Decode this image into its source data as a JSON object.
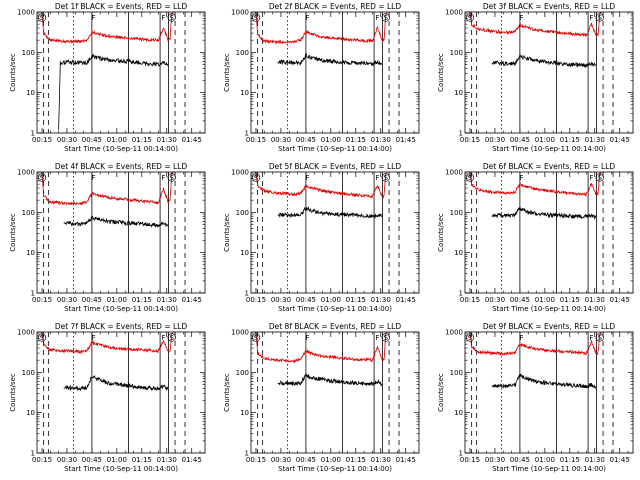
{
  "chart_data": [
    {
      "type": "line",
      "title": "Det 1f BLACK = Events, RED = LLD",
      "xlabel": "Start Time (10-Sep-11 00:14:00)",
      "ylabel": "Counts/sec",
      "yscale": "log",
      "ylim": [
        1,
        1000
      ],
      "xlim": [
        "00:15",
        "01:50"
      ],
      "x_ticks": [
        "00:15",
        "00:30",
        "00:45",
        "01:00",
        "01:15",
        "01:30",
        "01:45"
      ],
      "y_ticks": [
        "1",
        "10",
        "100",
        "1000"
      ],
      "flag_labels": [
        "F",
        "F",
        "S"
      ],
      "series": [
        {
          "name": "LLD",
          "color": "#e00000",
          "x_min": [
            15,
            16,
            20,
            28,
            38,
            42,
            45,
            47,
            55,
            65,
            75,
            85,
            88,
            91,
            92,
            93,
            94
          ],
          "values": [
            1000,
            300,
            200,
            190,
            185,
            200,
            320,
            300,
            250,
            230,
            210,
            200,
            400,
            200,
            220,
            900,
            1000
          ]
        },
        {
          "name": "Events",
          "color": "#000000",
          "x_min": [
            25,
            26,
            30,
            38,
            42,
            45,
            47,
            55,
            65,
            75,
            85,
            88,
            90,
            91
          ],
          "values": [
            1.2,
            55,
            58,
            55,
            55,
            80,
            75,
            65,
            60,
            55,
            50,
            55,
            50,
            50
          ]
        }
      ]
    },
    {
      "type": "line",
      "title": "Det 2f BLACK = Events, RED = LLD",
      "xlabel": "Start Time (10-Sep-11 00:14:00)",
      "ylabel": "Counts/sec",
      "yscale": "log",
      "ylim": [
        1,
        1000
      ],
      "xlim": [
        "00:15",
        "01:50"
      ],
      "x_ticks": [
        "00:15",
        "00:30",
        "00:45",
        "01:00",
        "01:15",
        "01:30",
        "01:45"
      ],
      "y_ticks": [
        "1",
        "10",
        "100",
        "1000"
      ],
      "flag_labels": [
        "F",
        "F",
        "S"
      ],
      "series": [
        {
          "name": "LLD",
          "color": "#e00000",
          "x_min": [
            15,
            16,
            20,
            28,
            38,
            42,
            45,
            47,
            55,
            65,
            75,
            85,
            88,
            91,
            92,
            93,
            94
          ],
          "values": [
            1000,
            280,
            190,
            180,
            180,
            200,
            330,
            300,
            240,
            220,
            200,
            190,
            420,
            190,
            210,
            900,
            1000
          ]
        },
        {
          "name": "Events",
          "color": "#000000",
          "x_min": [
            28,
            30,
            38,
            42,
            45,
            47,
            55,
            65,
            75,
            85,
            88,
            91
          ],
          "values": [
            55,
            58,
            55,
            55,
            85,
            75,
            62,
            58,
            55,
            52,
            58,
            50
          ]
        }
      ]
    },
    {
      "type": "line",
      "title": "Det 3f BLACK = Events, RED = LLD",
      "xlabel": "Start Time (10-Sep-11 00:14:00)",
      "ylabel": "Counts/sec",
      "yscale": "log",
      "ylim": [
        1,
        1000
      ],
      "xlim": [
        "00:15",
        "01:50"
      ],
      "x_ticks": [
        "00:15",
        "00:30",
        "00:45",
        "01:00",
        "01:15",
        "01:30",
        "01:45"
      ],
      "y_ticks": [
        "1",
        "10",
        "100",
        "1000"
      ],
      "flag_labels": [
        "F",
        "F",
        "S"
      ],
      "series": [
        {
          "name": "LLD",
          "color": "#e00000",
          "x_min": [
            15,
            16,
            20,
            28,
            38,
            42,
            45,
            47,
            55,
            65,
            75,
            85,
            88,
            91,
            92,
            93,
            94
          ],
          "values": [
            1000,
            500,
            380,
            330,
            310,
            330,
            480,
            440,
            360,
            320,
            290,
            270,
            500,
            260,
            280,
            900,
            1000
          ]
        },
        {
          "name": "Events",
          "color": "#000000",
          "x_min": [
            28,
            30,
            38,
            42,
            45,
            47,
            55,
            65,
            75,
            85,
            88,
            91
          ],
          "values": [
            52,
            55,
            52,
            52,
            85,
            75,
            62,
            55,
            50,
            48,
            52,
            47
          ]
        }
      ]
    },
    {
      "type": "line",
      "title": "Det 4f BLACK = Events, RED = LLD",
      "xlabel": "Start Time (10-Sep-11 00:14:00)",
      "ylabel": "Counts/sec",
      "yscale": "log",
      "ylim": [
        1,
        1000
      ],
      "xlim": [
        "00:15",
        "01:50"
      ],
      "x_ticks": [
        "00:15",
        "00:30",
        "00:45",
        "01:00",
        "01:15",
        "01:30",
        "01:45"
      ],
      "y_ticks": [
        "1",
        "10",
        "100",
        "1000"
      ],
      "flag_labels": [
        "F",
        "F",
        "S"
      ],
      "series": [
        {
          "name": "LLD",
          "color": "#e00000",
          "x_min": [
            15,
            16,
            20,
            28,
            38,
            42,
            45,
            47,
            55,
            65,
            75,
            85,
            88,
            91,
            92,
            93,
            94
          ],
          "values": [
            1000,
            260,
            180,
            170,
            165,
            180,
            300,
            280,
            230,
            210,
            190,
            175,
            380,
            175,
            190,
            900,
            1000
          ]
        },
        {
          "name": "Events",
          "color": "#000000",
          "x_min": [
            28,
            30,
            38,
            42,
            45,
            47,
            55,
            65,
            75,
            85,
            88,
            91
          ],
          "values": [
            55,
            55,
            50,
            52,
            75,
            70,
            60,
            55,
            52,
            48,
            52,
            45
          ]
        }
      ]
    },
    {
      "type": "line",
      "title": "Det 5f BLACK = Events, RED = LLD",
      "xlabel": "Start Time (10-Sep-11 00:14:00)",
      "ylabel": "Counts/sec",
      "yscale": "log",
      "ylim": [
        1,
        1000
      ],
      "xlim": [
        "00:15",
        "01:50"
      ],
      "x_ticks": [
        "00:15",
        "00:30",
        "00:45",
        "01:00",
        "01:15",
        "01:30",
        "01:45"
      ],
      "y_ticks": [
        "1",
        "10",
        "100",
        "1000"
      ],
      "flag_labels": [
        "F",
        "F",
        "S"
      ],
      "series": [
        {
          "name": "LLD",
          "color": "#e00000",
          "x_min": [
            15,
            16,
            20,
            28,
            38,
            42,
            45,
            47,
            55,
            65,
            75,
            85,
            88,
            91,
            92,
            93,
            94
          ],
          "values": [
            1000,
            450,
            340,
            300,
            280,
            300,
            450,
            420,
            340,
            300,
            270,
            250,
            480,
            240,
            260,
            900,
            1000
          ]
        },
        {
          "name": "Events",
          "color": "#000000",
          "x_min": [
            28,
            30,
            38,
            42,
            45,
            47,
            55,
            65,
            75,
            85,
            88,
            91
          ],
          "values": [
            85,
            88,
            85,
            88,
            125,
            115,
            95,
            88,
            85,
            80,
            85,
            78
          ]
        }
      ]
    },
    {
      "type": "line",
      "title": "Det 6f BLACK = Events, RED = LLD",
      "xlabel": "Start Time (10-Sep-11 00:14:00)",
      "ylabel": "Counts/sec",
      "yscale": "log",
      "ylim": [
        1,
        1000
      ],
      "xlim": [
        "00:15",
        "01:50"
      ],
      "x_ticks": [
        "00:15",
        "00:30",
        "00:45",
        "01:00",
        "01:15",
        "01:30",
        "01:45"
      ],
      "y_ticks": [
        "1",
        "10",
        "100",
        "1000"
      ],
      "flag_labels": [
        "F",
        "F",
        "S"
      ],
      "series": [
        {
          "name": "LLD",
          "color": "#e00000",
          "x_min": [
            15,
            16,
            20,
            28,
            38,
            42,
            45,
            47,
            55,
            65,
            75,
            85,
            88,
            91,
            92,
            93,
            94
          ],
          "values": [
            1000,
            480,
            360,
            320,
            300,
            320,
            500,
            460,
            370,
            330,
            300,
            280,
            520,
            270,
            290,
            900,
            1000
          ]
        },
        {
          "name": "Events",
          "color": "#000000",
          "x_min": [
            28,
            30,
            38,
            42,
            45,
            47,
            55,
            65,
            75,
            85,
            88,
            91
          ],
          "values": [
            80,
            85,
            82,
            85,
            125,
            110,
            92,
            85,
            80,
            78,
            82,
            75
          ]
        }
      ]
    },
    {
      "type": "line",
      "title": "Det 7f BLACK = Events, RED = LLD",
      "xlabel": "Start Time (10-Sep-11 00:14:00)",
      "ylabel": "Counts/sec",
      "yscale": "log",
      "ylim": [
        1,
        1000
      ],
      "xlim": [
        "00:15",
        "01:50"
      ],
      "x_ticks": [
        "00:15",
        "00:30",
        "00:45",
        "01:00",
        "01:15",
        "01:30",
        "01:45"
      ],
      "y_ticks": [
        "1",
        "10",
        "100",
        "1000"
      ],
      "flag_labels": [
        "F",
        "F",
        "S"
      ],
      "series": [
        {
          "name": "LLD",
          "color": "#e00000",
          "x_min": [
            15,
            16,
            20,
            28,
            38,
            42,
            45,
            47,
            55,
            65,
            75,
            85,
            88,
            91,
            92,
            93,
            94
          ],
          "values": [
            1000,
            500,
            360,
            340,
            330,
            340,
            560,
            520,
            420,
            380,
            360,
            340,
            600,
            330,
            350,
            900,
            1000
          ]
        },
        {
          "name": "Events",
          "color": "#000000",
          "x_min": [
            28,
            30,
            38,
            42,
            45,
            47,
            55,
            65,
            75,
            85,
            88,
            91
          ],
          "values": [
            40,
            42,
            40,
            42,
            80,
            72,
            55,
            48,
            42,
            40,
            45,
            38
          ]
        }
      ]
    },
    {
      "type": "line",
      "title": "Det 8f BLACK = Events, RED = LLD",
      "xlabel": "Start Time (10-Sep-11 00:14:00)",
      "ylabel": "Counts/sec",
      "yscale": "log",
      "ylim": [
        1,
        1000
      ],
      "xlim": [
        "00:15",
        "01:50"
      ],
      "x_ticks": [
        "00:15",
        "00:30",
        "00:45",
        "01:00",
        "01:15",
        "01:30",
        "01:45"
      ],
      "y_ticks": [
        "1",
        "10",
        "100",
        "1000"
      ],
      "flag_labels": [
        "F",
        "F",
        "S"
      ],
      "series": [
        {
          "name": "LLD",
          "color": "#e00000",
          "x_min": [
            15,
            16,
            20,
            28,
            38,
            42,
            45,
            47,
            55,
            65,
            75,
            85,
            88,
            91,
            92,
            93,
            94
          ],
          "values": [
            1000,
            300,
            220,
            200,
            190,
            210,
            340,
            310,
            250,
            230,
            210,
            200,
            420,
            200,
            215,
            900,
            1000
          ]
        },
        {
          "name": "Events",
          "color": "#000000",
          "x_min": [
            28,
            30,
            38,
            42,
            45,
            47,
            55,
            65,
            75,
            85,
            88,
            91
          ],
          "values": [
            52,
            55,
            52,
            55,
            85,
            78,
            65,
            58,
            55,
            52,
            58,
            50
          ]
        }
      ]
    },
    {
      "type": "line",
      "title": "Det 9f BLACK = Events, RED = LLD",
      "xlabel": "Start Time (10-Sep-11 00:14:00)",
      "ylabel": "Counts/sec",
      "yscale": "log",
      "ylim": [
        1,
        1000
      ],
      "xlim": [
        "00:15",
        "01:50"
      ],
      "x_ticks": [
        "00:15",
        "00:30",
        "00:45",
        "01:00",
        "01:15",
        "01:30",
        "01:45"
      ],
      "y_ticks": [
        "1",
        "10",
        "100",
        "1000"
      ],
      "flag_labels": [
        "F",
        "F",
        "S"
      ],
      "series": [
        {
          "name": "LLD",
          "color": "#e00000",
          "x_min": [
            15,
            16,
            20,
            28,
            38,
            42,
            45,
            47,
            55,
            65,
            75,
            85,
            88,
            91,
            92,
            93,
            94
          ],
          "values": [
            1000,
            420,
            320,
            300,
            290,
            310,
            500,
            460,
            380,
            340,
            320,
            300,
            560,
            290,
            310,
            900,
            1000
          ]
        },
        {
          "name": "Events",
          "color": "#000000",
          "x_min": [
            28,
            30,
            38,
            42,
            45,
            47,
            55,
            65,
            75,
            85,
            88,
            91
          ],
          "values": [
            45,
            48,
            45,
            48,
            85,
            75,
            58,
            52,
            48,
            45,
            50,
            42
          ]
        }
      ]
    }
  ]
}
